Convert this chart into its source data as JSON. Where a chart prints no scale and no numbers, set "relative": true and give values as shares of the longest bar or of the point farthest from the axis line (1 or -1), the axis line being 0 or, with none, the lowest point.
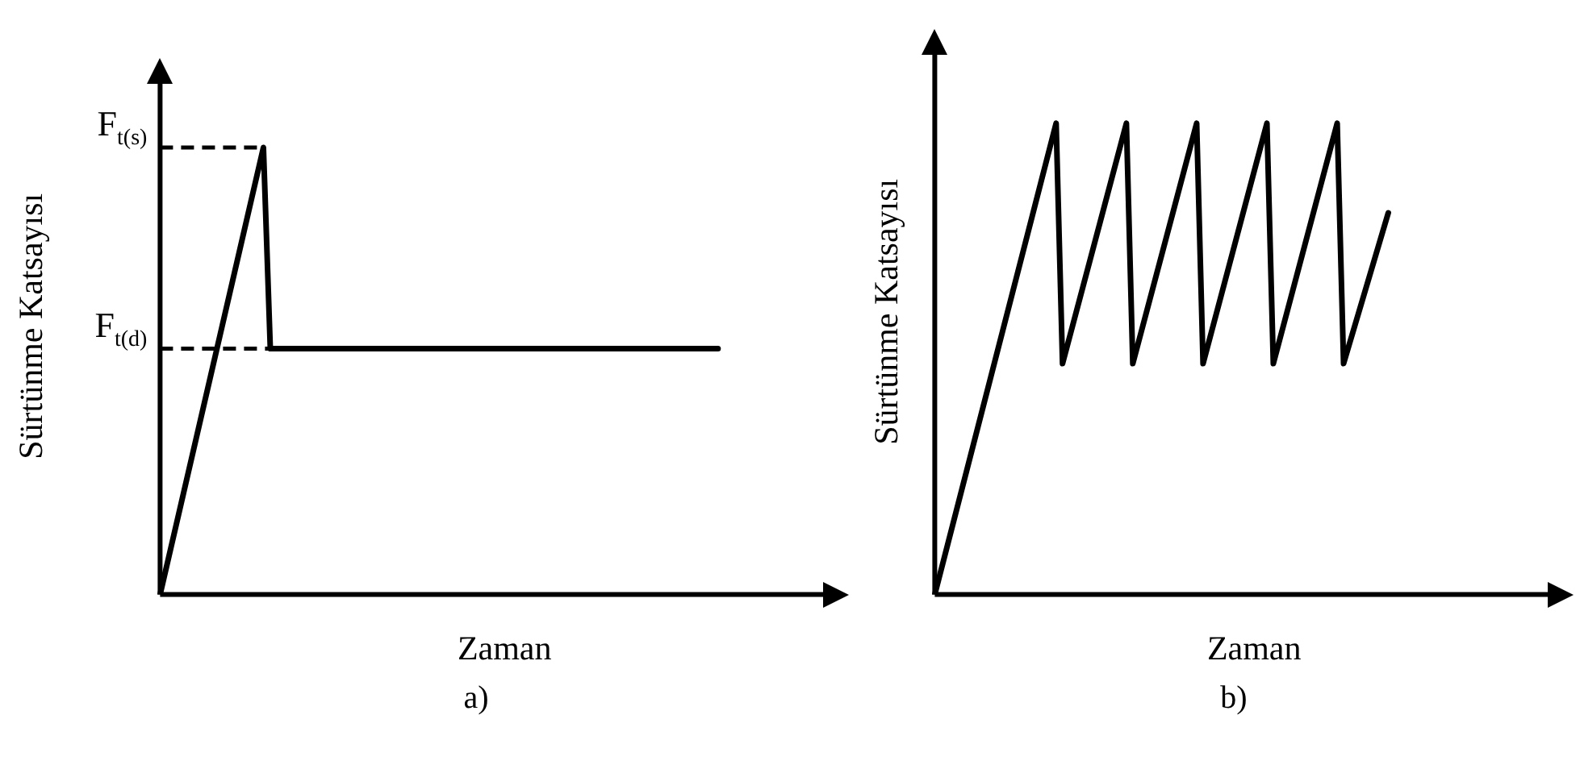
{
  "chart_data": [
    {
      "type": "line",
      "relative": true,
      "xlabel": "Zaman",
      "ylabel": "Sürtünme Katsayısı",
      "annotations": [
        "a)"
      ],
      "color": "#000000",
      "line_style": "solid",
      "categories": [
        null,
        null,
        null,
        null,
        null,
        null,
        null,
        null,
        null,
        null,
        null,
        null,
        null,
        null,
        null,
        null,
        null,
        null,
        null,
        null,
        null,
        null,
        null,
        null,
        null,
        null,
        null,
        null,
        null,
        null,
        null,
        null,
        null,
        null,
        null,
        null,
        null,
        null,
        null,
        null,
        null,
        null,
        null,
        null,
        null,
        null,
        null,
        null,
        null,
        null,
        null,
        null,
        null,
        null,
        null,
        null,
        null,
        null,
        null,
        null,
        null,
        null,
        null,
        null,
        null,
        null,
        null,
        null,
        null,
        null,
        null,
        null,
        null,
        null,
        null,
        null,
        null,
        null,
        null,
        null,
        null,
        null,
        null,
        null,
        null,
        null,
        null,
        null,
        null,
        null,
        null,
        null,
        null,
        null,
        null,
        null,
        null,
        null,
        null,
        null,
        null
      ],
      "values": [
        0,
        null,
        null,
        null,
        null,
        null,
        null,
        null,
        null,
        null,
        null,
        null,
        null,
        null,
        null,
        1,
        0.55,
        null,
        null,
        null,
        null,
        null,
        null,
        null,
        null,
        null,
        null,
        null,
        null,
        null,
        null,
        null,
        null,
        null,
        null,
        null,
        null,
        null,
        null,
        null,
        null,
        null,
        null,
        null,
        null,
        null,
        null,
        null,
        null,
        null,
        null,
        null,
        null,
        null,
        null,
        null,
        null,
        null,
        null,
        null,
        null,
        null,
        null,
        null,
        null,
        null,
        null,
        null,
        null,
        null,
        null,
        null,
        null,
        null,
        null,
        null,
        null,
        null,
        null,
        null,
        null,
        0.55,
        null,
        null,
        null,
        null,
        null,
        null,
        null,
        null,
        null,
        null,
        null,
        null,
        null,
        null,
        null,
        null,
        null,
        null,
        null
      ],
      "ref_lines": [
        {
          "axis": "y",
          "value": 1,
          "label": "F$_{t(s)}$",
          "line_style": "dashed"
        },
        {
          "axis": "y",
          "value": 0.55,
          "label": "F$_{t(d)}$",
          "line_style": "dashed"
        }
      ]
    },
    {
      "type": "line",
      "relative": true,
      "xlabel": "Zaman",
      "ylabel": "Sürtünme Katsayısı",
      "annotations": [
        "b)"
      ],
      "color": "#000000",
      "line_style": "solid",
      "categories": [
        null,
        null,
        null,
        null,
        null,
        null,
        null,
        null,
        null,
        null,
        null,
        null,
        null,
        null,
        null,
        null,
        null,
        null,
        null,
        null,
        null,
        null,
        null,
        null,
        null,
        null,
        null,
        null,
        null,
        null,
        null,
        null,
        null,
        null,
        null,
        null,
        null,
        null,
        null,
        null,
        null,
        null,
        null,
        null,
        null,
        null,
        null,
        null,
        null,
        null,
        null,
        null,
        null,
        null,
        null,
        null,
        null,
        null,
        null,
        null,
        null,
        null,
        null,
        null,
        null,
        null,
        null,
        null,
        null,
        null,
        null,
        null,
        null,
        null,
        null,
        null,
        null,
        null,
        null,
        null,
        null,
        null,
        null,
        null,
        null,
        null,
        null,
        null,
        null,
        null,
        null,
        null,
        null,
        null,
        null,
        null,
        null,
        null,
        null,
        null,
        null
      ],
      "values": [
        0,
        null,
        null,
        null,
        null,
        null,
        null,
        null,
        null,
        null,
        null,
        null,
        null,
        null,
        null,
        null,
        null,
        null,
        null,
        1,
        0.49,
        null,
        null,
        null,
        null,
        null,
        null,
        null,
        null,
        null,
        1,
        0.49,
        null,
        null,
        null,
        null,
        null,
        null,
        null,
        null,
        null,
        1,
        0.49,
        null,
        null,
        null,
        null,
        null,
        null,
        null,
        null,
        null,
        1,
        0.49,
        null,
        null,
        null,
        null,
        null,
        null,
        null,
        null,
        null,
        1,
        0.49,
        null,
        null,
        null,
        null,
        null,
        null,
        0.81,
        null,
        null,
        null,
        null,
        null,
        null,
        null,
        null,
        null,
        null,
        null,
        null,
        null,
        null,
        null,
        null,
        null,
        null,
        null,
        null,
        null,
        null,
        null,
        null,
        null,
        null,
        null,
        null,
        null
      ]
    }
  ]
}
